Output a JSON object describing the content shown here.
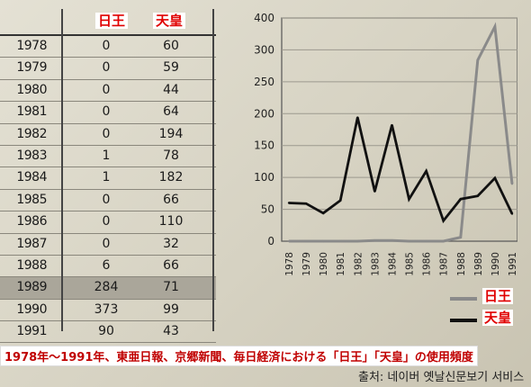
{
  "table": {
    "headers": [
      "日王",
      "天皇"
    ],
    "rows": [
      {
        "year": "1978",
        "a": "0",
        "b": "60"
      },
      {
        "year": "1979",
        "a": "0",
        "b": "59"
      },
      {
        "year": "1980",
        "a": "0",
        "b": "44"
      },
      {
        "year": "1981",
        "a": "0",
        "b": "64"
      },
      {
        "year": "1982",
        "a": "0",
        "b": "194"
      },
      {
        "year": "1983",
        "a": "1",
        "b": "78"
      },
      {
        "year": "1984",
        "a": "1",
        "b": "182"
      },
      {
        "year": "1985",
        "a": "0",
        "b": "66"
      },
      {
        "year": "1986",
        "a": "0",
        "b": "110"
      },
      {
        "year": "1987",
        "a": "0",
        "b": "32"
      },
      {
        "year": "1988",
        "a": "6",
        "b": "66"
      },
      {
        "year": "1989",
        "a": "284",
        "b": "71"
      },
      {
        "year": "1990",
        "a": "373",
        "b": "99"
      },
      {
        "year": "1991",
        "a": "90",
        "b": "43"
      }
    ],
    "highlight_year": "1989"
  },
  "chart_data": {
    "type": "line",
    "categories": [
      "1978",
      "1979",
      "1980",
      "1981",
      "1982",
      "1983",
      "1984",
      "1985",
      "1986",
      "1987",
      "1988",
      "1989",
      "1990",
      "1991"
    ],
    "y_ticks": [
      "0",
      "50",
      "100",
      "150",
      "200",
      "250",
      "300",
      "400"
    ],
    "series": [
      {
        "name": "日王",
        "color": "#8a8a8a",
        "values": [
          0,
          0,
          0,
          0,
          0,
          1,
          1,
          0,
          0,
          0,
          6,
          284,
          373,
          90
        ]
      },
      {
        "name": "天皇",
        "color": "#111111",
        "values": [
          60,
          59,
          44,
          64,
          194,
          78,
          182,
          66,
          110,
          32,
          66,
          71,
          99,
          43
        ]
      }
    ],
    "grid": true,
    "legend": "bottom-right"
  },
  "caption": "1978年〜1991年、東亜日報、京郷新聞、毎日経済における「日王」「天皇」の使用頻度",
  "source": "출처: 네이버 옛날신문보기 서비스"
}
